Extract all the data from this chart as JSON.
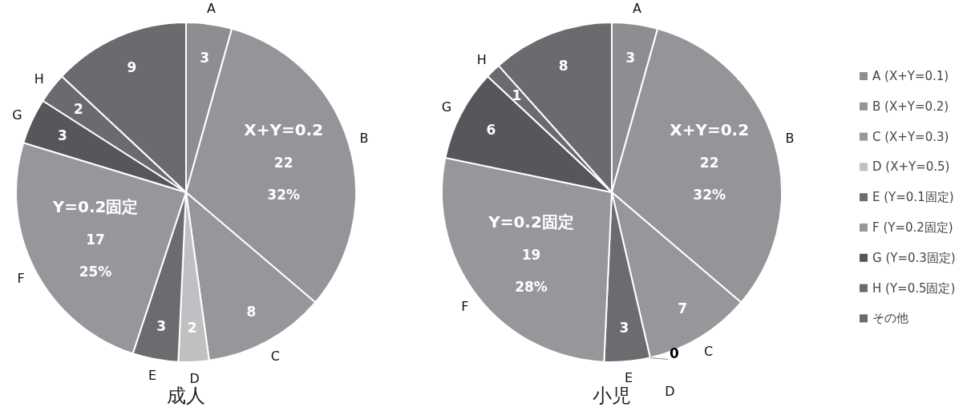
{
  "chart_data": [
    {
      "type": "pie",
      "title": "成人",
      "categories": [
        "A",
        "B",
        "C",
        "D",
        "E",
        "F",
        "G",
        "H",
        null
      ],
      "values": [
        3,
        22,
        8,
        2,
        3,
        17,
        3,
        2,
        9
      ],
      "colors": [
        "#8d8e91",
        "#949598",
        "#96979a",
        "#bfc0c2",
        "#6b6c70",
        "#96979a",
        "#56575b",
        "#6a6b6f",
        "#6a6b6f"
      ],
      "value_labels": [
        "3",
        "X+Y=0.2\n22\n32%",
        "8",
        "2",
        "3",
        "Y=0.2固定\n17\n25%",
        "3",
        "2",
        "9"
      ]
    },
    {
      "type": "pie",
      "title": "小児",
      "categories": [
        "A (X+Y=0.1)",
        "B (X+Y=0.2)",
        "C (X+Y=0.3)",
        "D (X+Y=0.5)",
        "E (Y=0.1固定)",
        "F (Y=0.2固定)",
        "G (Y=0.3固定)",
        "H (Y=0.5固定)",
        "その他"
      ],
      "values": [
        3,
        22,
        7,
        0,
        3,
        19,
        6,
        1,
        8
      ],
      "colors": [
        "#8d8e91",
        "#949598",
        "#96979a",
        "#bfc0c2",
        "#6b6c70",
        "#96979a",
        "#56575b",
        "#6a6b6f",
        "#6a6b6f"
      ],
      "value_labels": [
        "3",
        "X+Y=0.2\n22\n32%",
        "7",
        "0",
        "3",
        "Y=0.2固定\n19\n28%",
        "6",
        "1",
        "8"
      ],
      "annotations": [
        "A",
        "B",
        "C",
        "D",
        "E",
        "F",
        "G",
        "H"
      ],
      "legend": "right"
    }
  ]
}
